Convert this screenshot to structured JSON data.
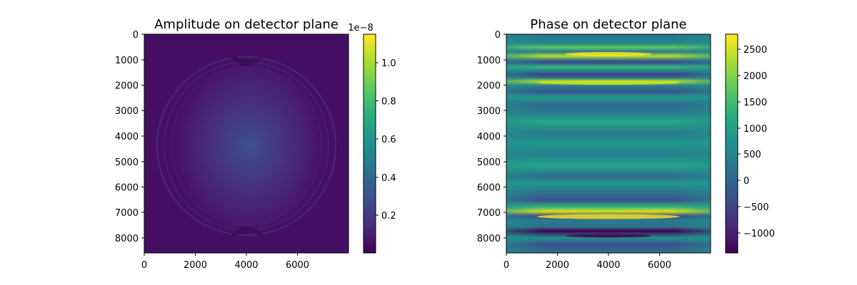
{
  "chart_data": [
    {
      "type": "heatmap",
      "title": "Amplitude on detector plane",
      "x_ticks": [
        0,
        2000,
        4000,
        6000
      ],
      "y_ticks": [
        0,
        1000,
        2000,
        3000,
        4000,
        5000,
        6000,
        7000,
        8000
      ],
      "xlim": [
        0,
        8000
      ],
      "ylim": [
        8600,
        0
      ],
      "colormap": "viridis",
      "colorbar": {
        "min": 0.0,
        "max": 1.15,
        "ticks": [
          0.2,
          0.4,
          0.6,
          0.8,
          1.0
        ],
        "tick_labels": [
          "0.2",
          "0.4",
          "0.6",
          "0.8",
          "1.0"
        ],
        "offset_label": "1e−8"
      }
    },
    {
      "type": "heatmap",
      "title": "Phase on detector plane",
      "x_ticks": [
        0,
        2000,
        4000,
        6000
      ],
      "y_ticks": [
        0,
        1000,
        2000,
        3000,
        4000,
        5000,
        6000,
        7000,
        8000
      ],
      "xlim": [
        0,
        8000
      ],
      "ylim": [
        8600,
        0
      ],
      "colormap": "viridis",
      "colorbar": {
        "min": -1380,
        "max": 2780,
        "ticks": [
          -1000,
          -500,
          0,
          500,
          1000,
          1500,
          2000,
          2500
        ],
        "tick_labels": [
          "−1000",
          "−500",
          "0",
          "500",
          "1000",
          "1500",
          "2000",
          "2500"
        ],
        "offset_label": ""
      }
    }
  ]
}
